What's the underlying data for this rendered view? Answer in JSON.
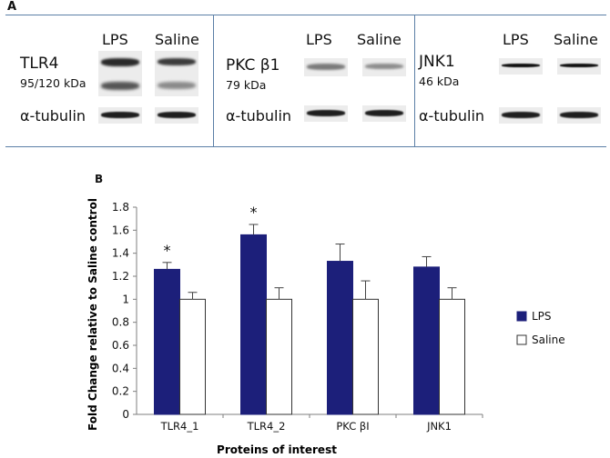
{
  "panel_a": {
    "letter": "A",
    "groups": [
      {
        "lanes": [
          "LPS",
          "Saline"
        ],
        "protein": "TLR4",
        "kda": "95/120 kDa",
        "control": "α-tubulin"
      },
      {
        "lanes": [
          "LPS",
          "Saline"
        ],
        "protein": "PKC β1",
        "kda": "79 kDa",
        "control": "α-tubulin"
      },
      {
        "lanes": [
          "LPS",
          "Saline"
        ],
        "protein": "JNK1",
        "kda": "46 kDa",
        "control": "α-tubulin"
      }
    ]
  },
  "panel_b": {
    "letter": "B"
  },
  "chart_data": {
    "type": "bar",
    "categories": [
      "TLR4_1",
      "TLR4_2",
      "PKC βI",
      "JNK1"
    ],
    "series": [
      {
        "name": "LPS",
        "values": [
          1.26,
          1.56,
          1.33,
          1.28
        ],
        "errors": [
          0.06,
          0.09,
          0.15,
          0.09
        ],
        "color": "#1c1f7a"
      },
      {
        "name": "Saline",
        "values": [
          1.0,
          1.0,
          1.0,
          1.0
        ],
        "errors": [
          0.06,
          0.1,
          0.16,
          0.1
        ],
        "color": "#ffffff"
      }
    ],
    "significance": [
      {
        "category": "TLR4_1",
        "series": "LPS",
        "mark": "*"
      },
      {
        "category": "TLR4_2",
        "series": "LPS",
        "mark": "*"
      }
    ],
    "xlabel": "Proteins of interest",
    "ylabel": "Fold Change relative to Saline control",
    "ylim": [
      0,
      1.8
    ],
    "yticks": [
      "0",
      "0.2",
      "0.4",
      "0.6",
      "0.8",
      "1",
      "1.2",
      "1.4",
      "1.6",
      "1.8"
    ],
    "grid": false,
    "legend": "right"
  }
}
